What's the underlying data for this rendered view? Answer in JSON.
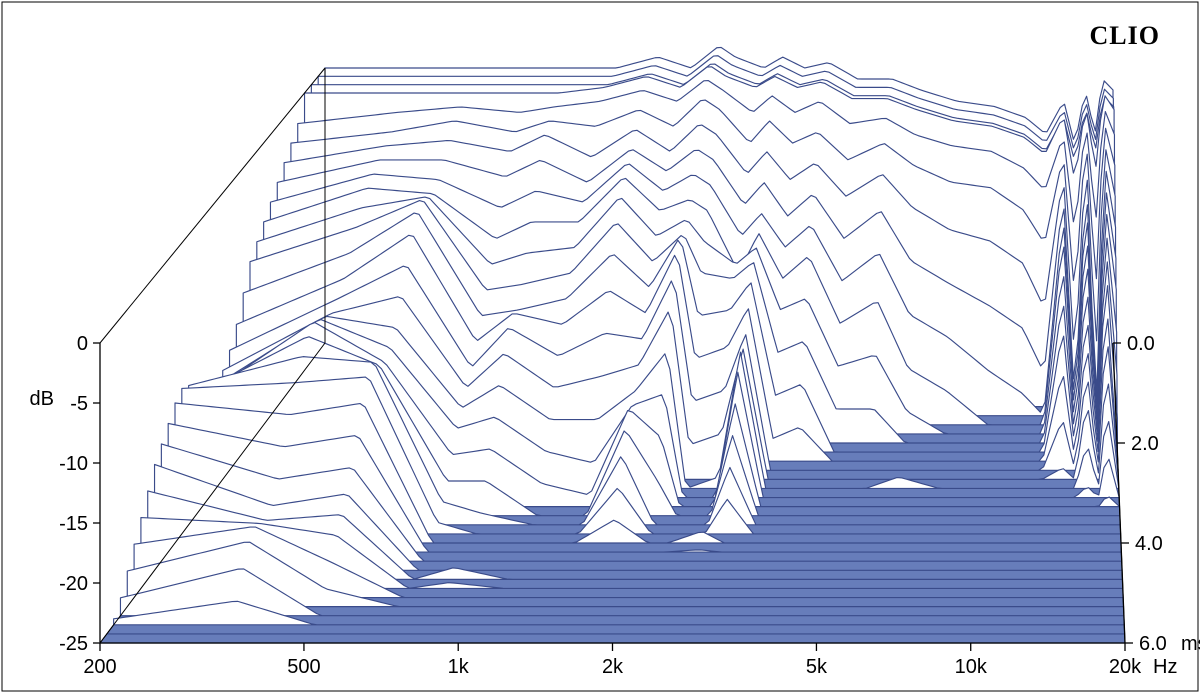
{
  "chart": {
    "type": "waterfall-csd",
    "brand": "CLIO",
    "background_color": "#ffffff",
    "floor_color": "#677dba",
    "stroke_color": "#3a4b8a",
    "fill_color": "#ffffff",
    "stroke_width": 1.15,
    "x_axis": {
      "label": "Hz",
      "scale": "log",
      "min": 200,
      "max": 20000,
      "ticks": [
        200,
        500,
        1000,
        2000,
        5000,
        10000,
        20000
      ],
      "tick_labels": [
        "200",
        "500",
        "1k",
        "2k",
        "5k",
        "10k",
        "20k"
      ]
    },
    "y_axis": {
      "label": "dB",
      "min": -25,
      "max": 0,
      "ticks": [
        0,
        -5,
        -10,
        -15,
        -20,
        -25
      ]
    },
    "z_axis": {
      "label": "ms",
      "min": 0.0,
      "max": 6.0,
      "ticks": [
        0.0,
        2.0,
        4.0,
        6.0
      ],
      "tick_labels": [
        "0.0",
        "2.0",
        "4.0",
        "6.0"
      ]
    },
    "n_slices": 34,
    "seed_profiles": [
      {
        "f": 200,
        "d": [
          0,
          0,
          0,
          0,
          -2,
          -3,
          -4,
          -5,
          -6,
          -7,
          -8,
          -9,
          -11,
          -13,
          -14.5,
          -15.5,
          -16,
          -16,
          -15.5,
          -14.5,
          -13,
          -12.5,
          -13,
          -14,
          -15,
          -16,
          -17.5,
          -19,
          -20.5,
          -22,
          -23.5,
          -24.5,
          -25,
          -25
        ]
      },
      {
        "f": 350,
        "d": [
          0,
          0,
          0,
          0,
          -1,
          -2,
          -2.5,
          -3,
          -3.5,
          -4,
          -5,
          -6,
          -7.5,
          -9,
          -10,
          -10.5,
          -10,
          -9.5,
          -9,
          -9.5,
          -10.5,
          -12,
          -14,
          -16,
          -18,
          -19.5,
          -20,
          -19.5,
          -19,
          -19.5,
          -21,
          -23,
          -25,
          -25
        ]
      },
      {
        "f": 500,
        "d": [
          0,
          0,
          0,
          0,
          -0.5,
          -1,
          -2,
          -3,
          -4,
          -4.5,
          -4,
          -3.5,
          -3.8,
          -5,
          -7,
          -9,
          -11,
          -12,
          -12.5,
          -12,
          -11,
          -11.5,
          -13,
          -15,
          -17,
          -18.5,
          -19.5,
          -20.5,
          -22,
          -23.5,
          -25,
          -25,
          -25,
          -25
        ]
      },
      {
        "f": 700,
        "d": [
          0,
          0,
          0,
          0,
          -1,
          -2,
          -3,
          -4.5,
          -6.5,
          -8.5,
          -10,
          -11.5,
          -13,
          -14.5,
          -16,
          -17,
          -18,
          -19,
          -20.5,
          -22,
          -23,
          -24,
          -25,
          -25,
          -25,
          -25,
          -25,
          -25,
          -25,
          -25,
          -25,
          -25,
          -25,
          -25
        ]
      },
      {
        "f": 850,
        "d": [
          0,
          0,
          0,
          0,
          -0.5,
          -1,
          -1.5,
          -3,
          -5,
          -7,
          -9,
          -11,
          -12.5,
          -12,
          -12.5,
          -14,
          -16,
          -18,
          -20,
          -22,
          -24,
          -25,
          -25,
          -25,
          -25,
          -25,
          -24,
          -24.5,
          -25,
          -25,
          -25,
          -25,
          -25,
          -25
        ]
      },
      {
        "f": 1100,
        "d": [
          0,
          0,
          0,
          0.5,
          0,
          -1.5,
          -3.5,
          -5,
          -6,
          -7,
          -8.5,
          -10,
          -11.5,
          -13,
          -15,
          -17,
          -19,
          -21,
          -23,
          -25,
          -25,
          -25,
          -25,
          -25,
          -25,
          -25,
          -25,
          -25,
          -25,
          -25,
          -25,
          -25,
          -25,
          -25
        ]
      },
      {
        "f": 1400,
        "d": [
          1,
          1,
          1,
          1.5,
          1,
          0,
          -1,
          -2,
          -2.5,
          -3,
          -4,
          -5.5,
          -7.5,
          -10,
          -13,
          -16,
          -19,
          -22,
          -24,
          -25,
          -25,
          -25,
          -25,
          -25,
          -25,
          -25,
          -25,
          -25,
          -25,
          -25,
          -25,
          -25,
          -25,
          -25
        ]
      },
      {
        "f": 1700,
        "d": [
          0,
          0,
          0,
          0.5,
          0,
          -1.5,
          -3,
          -4,
          -5,
          -6,
          -7.5,
          -9,
          -10.5,
          -12,
          -13.5,
          -15,
          -16.5,
          -17,
          -16.5,
          -17.5,
          -19,
          -21,
          -23,
          -25,
          -25,
          -25,
          -25,
          -25,
          -25,
          -25,
          -25,
          -25,
          -25,
          -25
        ]
      },
      {
        "f": 2000,
        "d": [
          2,
          2,
          2,
          2.5,
          2,
          1,
          -0.5,
          -2,
          -3.5,
          -5,
          -6,
          -6.5,
          -6,
          -6.5,
          -8,
          -10,
          -13,
          -16,
          -19,
          -22,
          -25,
          -25,
          -25,
          -25,
          -25,
          -25,
          -25,
          -25,
          -25,
          -25,
          -25,
          -25,
          -25,
          -25
        ]
      },
      {
        "f": 2200,
        "d": [
          1,
          1,
          1,
          1.5,
          1,
          0,
          -1.5,
          -3,
          -4.5,
          -6,
          -8,
          -10,
          -13,
          -16,
          -19,
          -22,
          -25,
          -25,
          -25,
          -25,
          -25,
          -25,
          -25,
          -25,
          -25,
          -25,
          -25,
          -25,
          -25,
          -25,
          -25,
          -25,
          -25,
          -25
        ]
      },
      {
        "f": 2600,
        "d": [
          0,
          0,
          0,
          0.5,
          -1,
          -3,
          -5,
          -7,
          -9,
          -11.5,
          -10,
          -10.5,
          -12.5,
          -15,
          -18,
          -21,
          -24,
          -25,
          -25,
          -25,
          -25,
          -25,
          -24,
          -24.8,
          -25,
          -25,
          -25,
          -25,
          -25,
          -25,
          -25,
          -25,
          -25,
          -25
        ]
      },
      {
        "f": 2900,
        "d": [
          1,
          1,
          1,
          1.5,
          0.5,
          -1,
          -3,
          -5,
          -7,
          -8,
          -8.5,
          -9,
          -10,
          -11.5,
          -13,
          -13.5,
          -13,
          -14,
          -16,
          -18,
          -20,
          -22,
          -25,
          -25,
          -25,
          -25,
          -25,
          -25,
          -25,
          -25,
          -25,
          -25,
          -25,
          -25
        ]
      },
      {
        "f": 3300,
        "d": [
          0,
          0,
          0,
          0.5,
          -1,
          -3,
          -5.5,
          -8,
          -10,
          -12,
          -14,
          -17,
          -20,
          -23,
          -25,
          -25,
          -25,
          -25,
          -25,
          -25,
          -25,
          -25,
          -25,
          -25,
          -25,
          -25,
          -25,
          -25,
          -25,
          -25,
          -25,
          -25,
          -25,
          -25
        ]
      },
      {
        "f": 3800,
        "d": [
          0.5,
          0.5,
          0.5,
          1,
          0,
          -2,
          -4,
          -6,
          -8,
          -10,
          -13,
          -16,
          -19,
          -22,
          -25,
          -25,
          -25,
          -25,
          -25,
          -25,
          -25,
          -25,
          -25,
          -25,
          -25,
          -25,
          -25,
          -25,
          -25,
          -25,
          -25,
          -25,
          -25,
          -25
        ]
      },
      {
        "f": 4500,
        "d": [
          -1,
          -1,
          -1,
          -0.5,
          -2,
          -4.5,
          -7,
          -10,
          -13,
          -16,
          -19,
          -22,
          -25,
          -25,
          -25,
          -25,
          -25,
          -25,
          -25,
          -25,
          -25,
          -25,
          -25,
          -25,
          -25,
          -25,
          -25,
          -25,
          -25,
          -25,
          -25,
          -25,
          -25,
          -25
        ]
      },
      {
        "f": 5500,
        "d": [
          -1,
          -1,
          -1,
          -0.5,
          -1.5,
          -3,
          -5,
          -7.5,
          -10.5,
          -14,
          -18,
          -22,
          -25,
          -25,
          -25,
          -25,
          -25,
          -25,
          -25,
          -25,
          -25,
          -25,
          -25,
          -25,
          -25,
          -25,
          -25,
          -25,
          -25,
          -25,
          -25,
          -25,
          -25,
          -25
        ]
      },
      {
        "f": 6500,
        "d": [
          -2,
          -2,
          -2,
          -1.5,
          -3,
          -5,
          -8,
          -12,
          -16,
          -20,
          -23,
          -25,
          -25,
          -25,
          -25,
          -25,
          -24,
          -25,
          -25,
          -25,
          -25,
          -25,
          -25,
          -25,
          -25,
          -25,
          -25,
          -25,
          -25,
          -25,
          -25,
          -25,
          -25,
          -25
        ]
      },
      {
        "f": 8000,
        "d": [
          -3,
          -3,
          -3,
          -2.5,
          -4,
          -6.5,
          -10,
          -14,
          -18,
          -22,
          -25,
          -25,
          -25,
          -25,
          -25,
          -25,
          -25,
          -25,
          -25,
          -25,
          -25,
          -25,
          -25,
          -25,
          -25,
          -25,
          -25,
          -25,
          -25,
          -25,
          -25,
          -25,
          -25,
          -25
        ]
      },
      {
        "f": 10000,
        "d": [
          -3.5,
          -3.5,
          -3.5,
          -3,
          -4.5,
          -7,
          -11,
          -16,
          -21,
          -25,
          -25,
          -25,
          -25,
          -25,
          -25,
          -25,
          -25,
          -25,
          -25,
          -25,
          -25,
          -25,
          -25,
          -25,
          -25,
          -25,
          -25,
          -25,
          -25,
          -25,
          -25,
          -25,
          -25,
          -25
        ]
      },
      {
        "f": 12000,
        "d": [
          -4.5,
          -4.5,
          -4.5,
          -4,
          -6,
          -9,
          -13,
          -18,
          -23,
          -25,
          -25,
          -25,
          -25,
          -25,
          -25,
          -25,
          -25,
          -25,
          -25,
          -25,
          -25,
          -25,
          -25,
          -25,
          -25,
          -25,
          -25,
          -25,
          -25,
          -25,
          -25,
          -25,
          -25,
          -25
        ]
      },
      {
        "f": 13500,
        "d": [
          -6,
          -6,
          -6,
          -5.5,
          -8,
          -12,
          -17,
          -22,
          -25,
          -25,
          -25,
          -25,
          -25,
          -25,
          -25,
          -25,
          -25,
          -25,
          -25,
          -25,
          -25,
          -25,
          -25,
          -25,
          -25,
          -25,
          -25,
          -25,
          -25,
          -25,
          -25,
          -25,
          -25,
          -25
        ]
      },
      {
        "f": 15000,
        "d": [
          -3,
          -3,
          -3,
          -2,
          -3,
          -4,
          -5,
          -6,
          -7,
          -8,
          -10,
          -12,
          -14,
          -17,
          -20.5,
          -24,
          -25,
          -25,
          -25,
          -25,
          -25,
          -25,
          -25,
          -25,
          -25,
          -25,
          -25,
          -25,
          -25,
          -25,
          -25,
          -25,
          -25,
          -25
        ]
      },
      {
        "f": 16000,
        "d": [
          -7,
          -7,
          -7,
          -8,
          -12,
          -17,
          -22,
          -25,
          -25,
          -25,
          -25,
          -25,
          -25,
          -25,
          -25,
          -25,
          -25,
          -25,
          -25,
          -25,
          -25,
          -25,
          -25,
          -25,
          -25,
          -25,
          -25,
          -25,
          -25,
          -25,
          -25,
          -25,
          -25,
          -25
        ]
      },
      {
        "f": 17000,
        "d": [
          -2,
          -2,
          -2,
          -1,
          -1.5,
          -2,
          -3,
          -4,
          -5,
          -6.5,
          -8,
          -10,
          -12,
          -14,
          -16,
          -18,
          -21,
          -24,
          -25,
          -25,
          -25,
          -25,
          -25,
          -25,
          -25,
          -25,
          -25,
          -25,
          -25,
          -25,
          -25,
          -25,
          -25,
          -25
        ]
      },
      {
        "f": 18000,
        "d": [
          -6,
          -6,
          -6,
          -7,
          -11,
          -16,
          -21,
          -25,
          -25,
          -25,
          -25,
          -25,
          -25,
          -25,
          -25,
          -25,
          -25,
          -25,
          -25,
          -25,
          -25,
          -25,
          -25,
          -25,
          -25,
          -25,
          -25,
          -25,
          -25,
          -25,
          -25,
          -25,
          -25,
          -25
        ]
      },
      {
        "f": 18800,
        "d": [
          -1,
          -1,
          -1,
          0,
          -0.5,
          -1,
          -2,
          -3,
          -4,
          -5,
          -6,
          -7,
          -8,
          -10,
          -12,
          -15,
          -18,
          -21,
          -24,
          -25,
          -25,
          -25,
          -25,
          -25,
          -25,
          -25,
          -25,
          -25,
          -25,
          -25,
          -25,
          -25,
          -25,
          -25
        ]
      },
      {
        "f": 20000,
        "d": [
          -2,
          -2,
          -2,
          -1.5,
          -3,
          -5,
          -7,
          -9,
          -11,
          -13,
          -16,
          -19,
          -22,
          -25,
          -25,
          -25,
          -25,
          -25,
          -25,
          -25,
          -25,
          -25,
          -25,
          -25,
          -25,
          -25,
          -25,
          -25,
          -25,
          -25,
          -25,
          -25,
          -25,
          -25
        ]
      }
    ]
  }
}
